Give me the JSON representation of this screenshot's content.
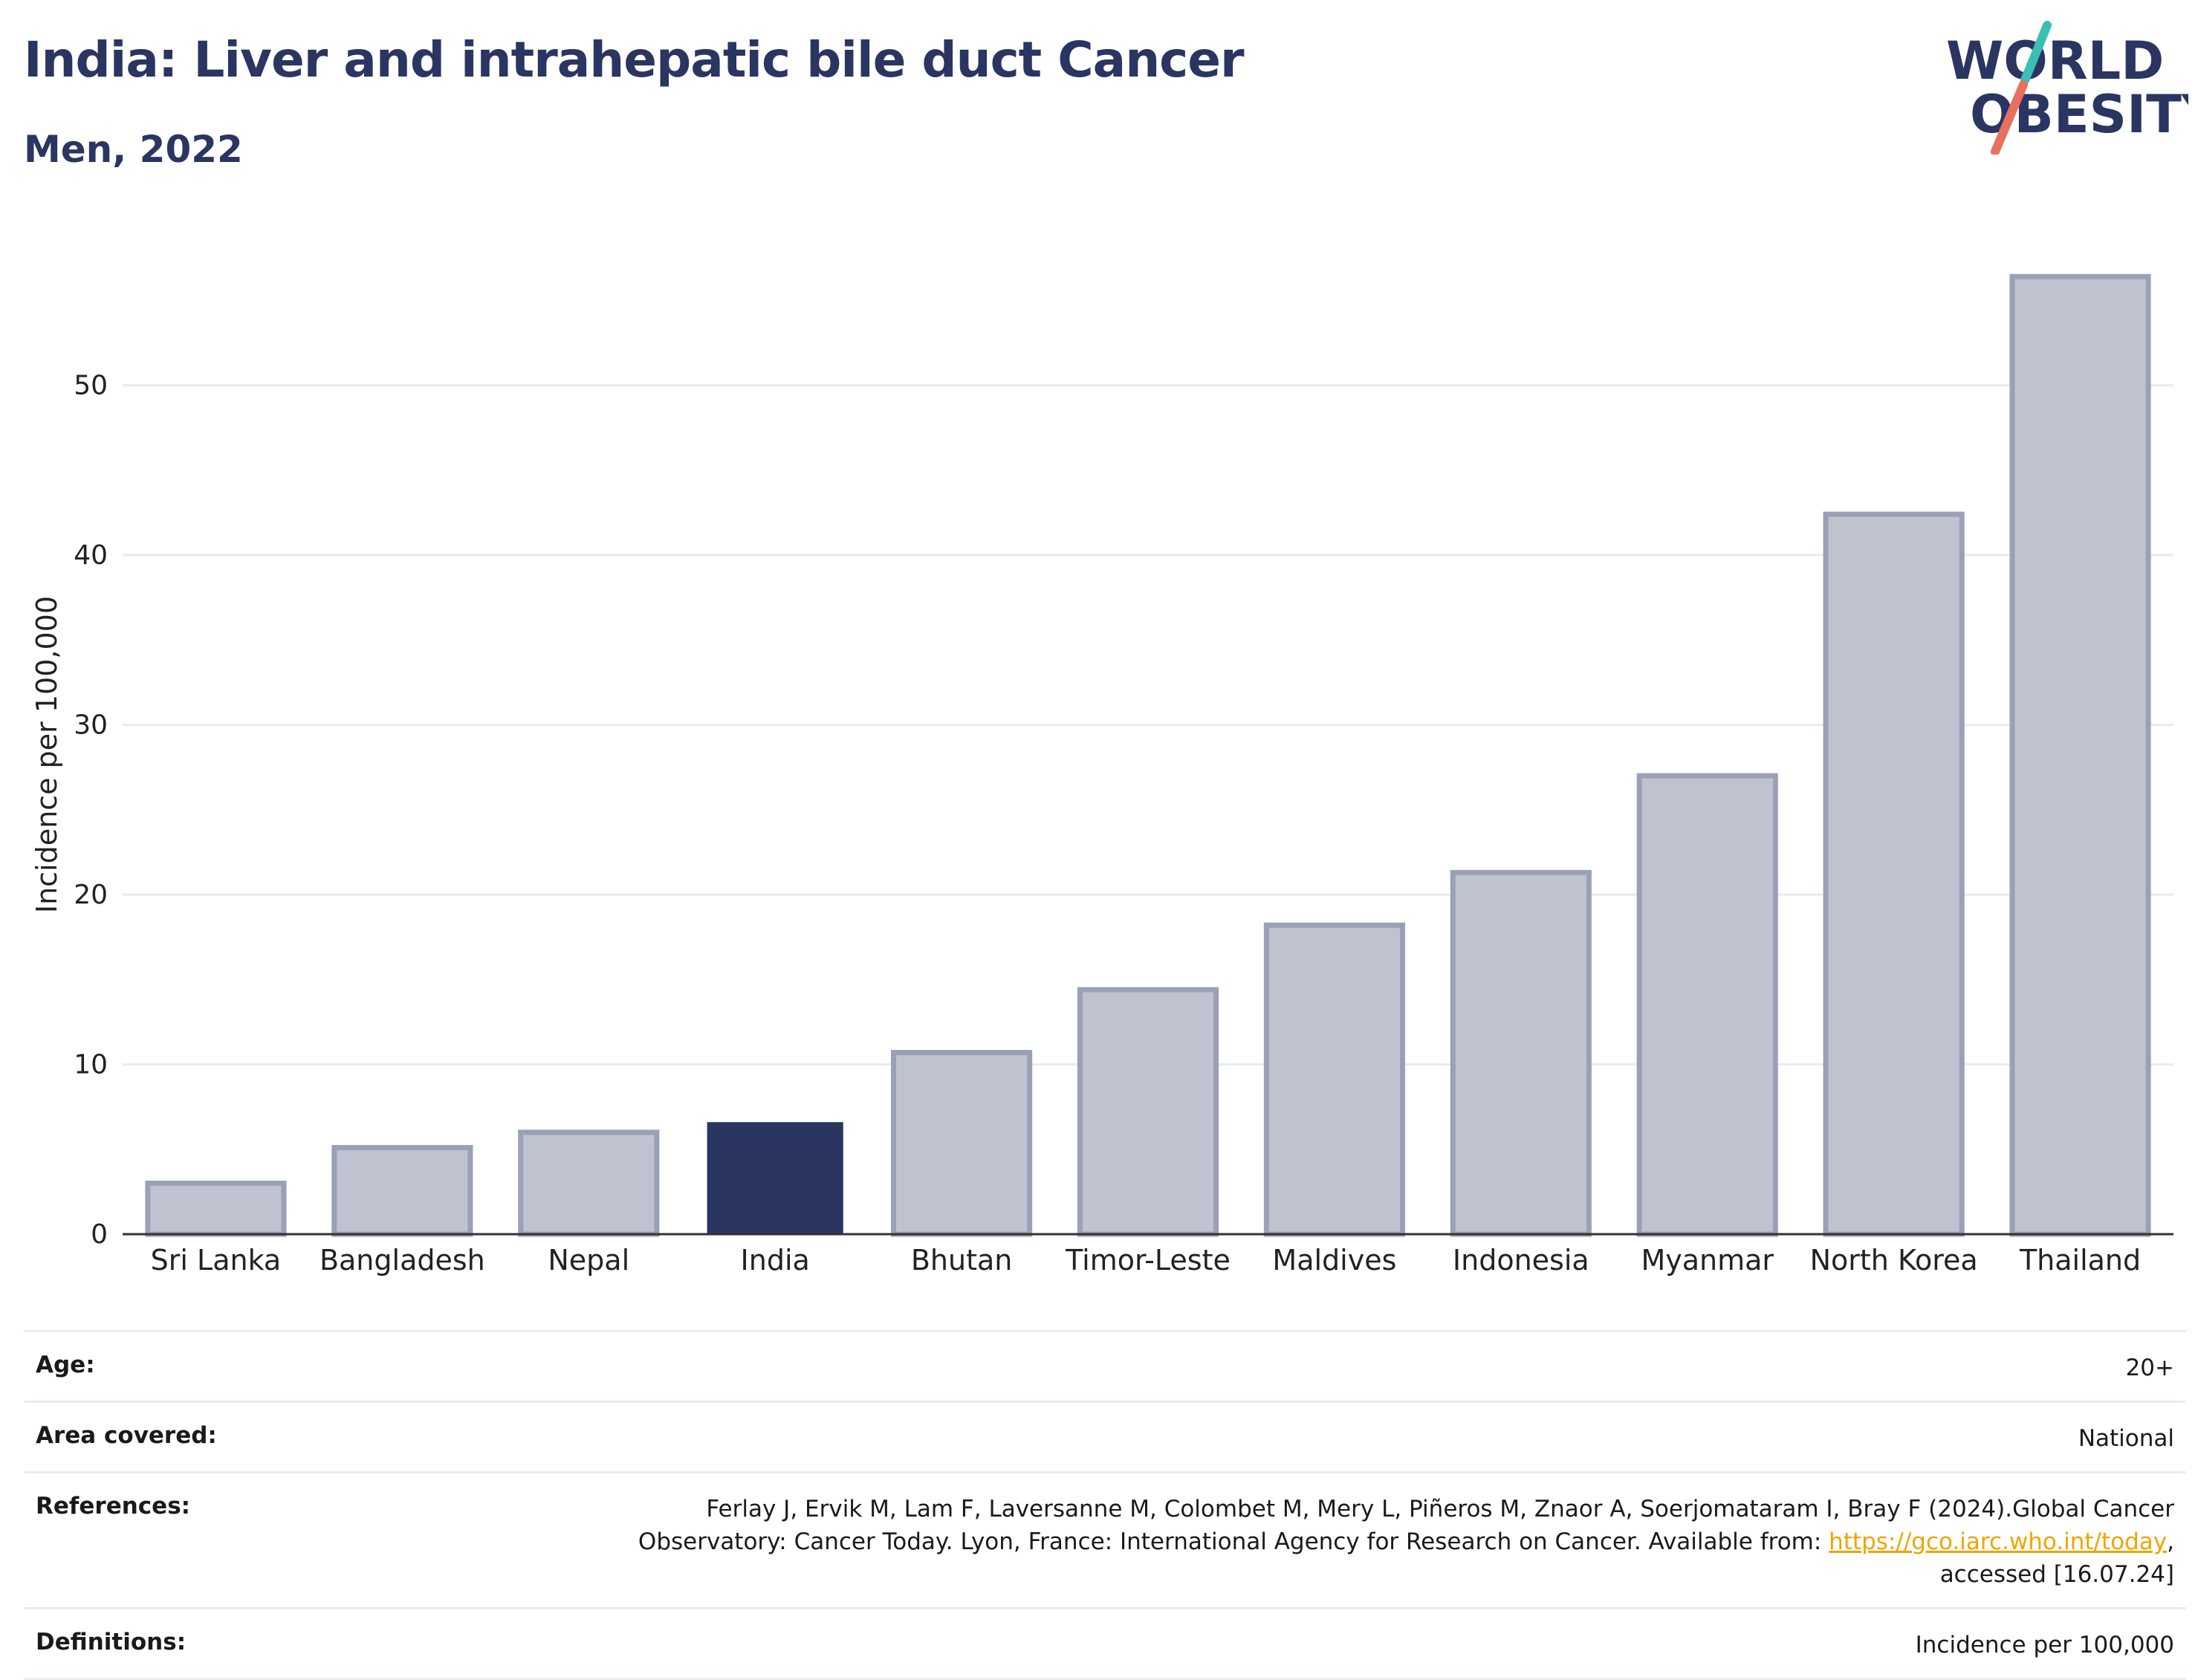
{
  "header": {
    "title": "India: Liver and intrahepatic bile duct Cancer",
    "subtitle": "Men, 2022"
  },
  "logo": {
    "line1": "WORLD",
    "line2": "OBESITY",
    "colors": {
      "text": "#2a3561",
      "slash_top": "#3bbfb5",
      "slash_bottom": "#e8705f"
    }
  },
  "chart_data": {
    "type": "bar",
    "categories": [
      "Sri Lanka",
      "Bangladesh",
      "Nepal",
      "India",
      "Bhutan",
      "Timor-Leste",
      "Maldives",
      "Indonesia",
      "Myanmar",
      "North Korea",
      "Thailand"
    ],
    "values": [
      3.0,
      5.1,
      6.0,
      6.6,
      10.7,
      14.4,
      18.2,
      21.3,
      27.0,
      42.4,
      56.4
    ],
    "highlight": "India",
    "ylabel": "Incidence per 100,000",
    "ylim": [
      0,
      60
    ],
    "yticks": [
      0,
      10,
      20,
      30,
      40,
      50
    ],
    "grid": true,
    "colors": {
      "bar": "#bfc3d0",
      "bar_edge": "#9aa0b6",
      "highlight": "#2a3561",
      "grid": "#e9ebef",
      "axis": "#333333"
    }
  },
  "metadata": {
    "rows": [
      {
        "label": "Age:",
        "value": "20+"
      },
      {
        "label": "Area covered:",
        "value": "National"
      },
      {
        "label": "References:",
        "value_pre": "Ferlay J, Ervik M, Lam F, Laversanne M, Colombet M, Mery L, Piñeros M, Znaor A, Soerjomataram I, Bray F (2024).Global Cancer Observatory: Cancer Today. Lyon, France: International Agency for Research on Cancer. Available from: ",
        "link": "https://gco.iarc.who.int/today",
        "value_post": ", accessed [16.07.24]"
      },
      {
        "label": "Definitions:",
        "value": "Incidence per 100,000"
      }
    ]
  }
}
